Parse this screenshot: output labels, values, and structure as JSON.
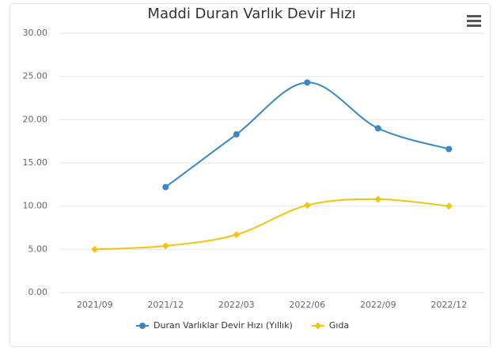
{
  "chart_data": {
    "type": "line",
    "title": "Maddi Duran Varlık Devir Hızı",
    "categories": [
      "2021/09",
      "2021/12",
      "2022/03",
      "2022/06",
      "2022/09",
      "2022/12"
    ],
    "series": [
      {
        "name": "Duran Varlıklar Devir Hızı (Yıllık)",
        "color": "#3a87c8",
        "marker": "circle",
        "values": [
          null,
          12.2,
          18.3,
          24.3,
          19.0,
          16.6
        ]
      },
      {
        "name": "Gıda",
        "color": "#f2c40f",
        "marker": "diamond",
        "values": [
          5.0,
          5.4,
          6.7,
          10.1,
          10.8,
          10.0
        ]
      }
    ],
    "ylim": [
      0,
      30
    ],
    "yticks": [
      {
        "value": 0,
        "label": "0.00"
      },
      {
        "value": 5,
        "label": "5.00"
      },
      {
        "value": 10,
        "label": "10.00"
      },
      {
        "value": 15,
        "label": "15.00"
      },
      {
        "value": 20,
        "label": "20.00"
      },
      {
        "value": 25,
        "label": "25.00"
      },
      {
        "value": 30,
        "label": "30.00"
      }
    ],
    "grid": true,
    "legend": "bottom"
  }
}
